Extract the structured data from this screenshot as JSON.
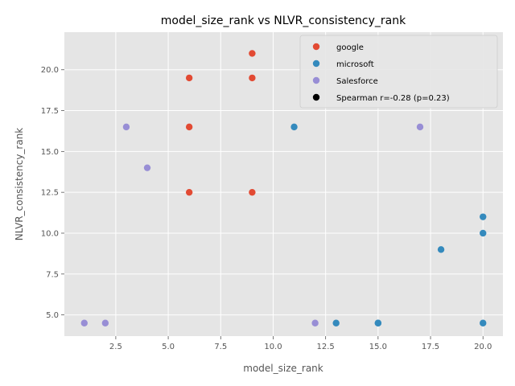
{
  "chart_data": {
    "type": "scatter",
    "title": "model_size_rank vs NLVR_consistency_rank",
    "xlabel": "model_size_rank",
    "ylabel": "NLVR_consistency_rank",
    "xlim": [
      0.05,
      20.95
    ],
    "ylim": [
      3.7,
      22.3
    ],
    "xticks": [
      2.5,
      5.0,
      7.5,
      10.0,
      12.5,
      15.0,
      17.5,
      20.0
    ],
    "xtick_labels": [
      "2.5",
      "5.0",
      "7.5",
      "10.0",
      "12.5",
      "15.0",
      "17.5",
      "20.0"
    ],
    "yticks": [
      5.0,
      7.5,
      10.0,
      12.5,
      15.0,
      17.5,
      20.0
    ],
    "ytick_labels": [
      "5.0",
      "7.5",
      "10.0",
      "12.5",
      "15.0",
      "17.5",
      "20.0"
    ],
    "grid": true,
    "legend_position": "top-right",
    "series": [
      {
        "name": "google",
        "color": "#E24A33",
        "points": [
          [
            9,
            21.0
          ],
          [
            6,
            19.5
          ],
          [
            9,
            19.5
          ],
          [
            6,
            16.5
          ],
          [
            6,
            12.5
          ],
          [
            9,
            12.5
          ]
        ]
      },
      {
        "name": "microsoft",
        "color": "#348ABD",
        "points": [
          [
            11,
            16.5
          ],
          [
            20,
            11.0
          ],
          [
            20,
            10.0
          ],
          [
            18,
            9.0
          ],
          [
            13,
            4.5
          ],
          [
            15,
            4.5
          ],
          [
            15,
            4.5
          ],
          [
            20,
            4.5
          ]
        ]
      },
      {
        "name": "Salesforce",
        "color": "#988ED5",
        "points": [
          [
            3,
            16.5
          ],
          [
            4,
            14.0
          ],
          [
            1,
            4.5
          ],
          [
            2,
            4.5
          ],
          [
            12,
            4.5
          ],
          [
            17,
            16.5
          ]
        ]
      }
    ],
    "annotation": {
      "label": "Spearman r=-0.28 (p=0.23)",
      "color": "#000000"
    }
  }
}
